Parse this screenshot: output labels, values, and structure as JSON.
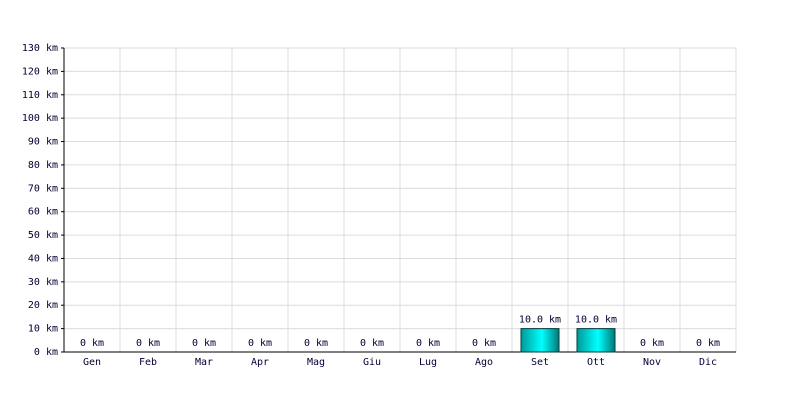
{
  "chart_data": {
    "type": "bar",
    "categories": [
      "Gen",
      "Feb",
      "Mar",
      "Apr",
      "Mag",
      "Giu",
      "Lug",
      "Ago",
      "Set",
      "Ott",
      "Nov",
      "Dic"
    ],
    "values": [
      0,
      0,
      0,
      0,
      0,
      0,
      0,
      0,
      10,
      10,
      0,
      0
    ],
    "value_labels": [
      "0 km",
      "0 km",
      "0 km",
      "0 km",
      "0 km",
      "0 km",
      "0 km",
      "0 km",
      "10.0 km",
      "10.0 km",
      "0 km",
      "0 km"
    ],
    "color": "#00e0e0",
    "ylim": [
      0,
      130
    ],
    "yticks": [
      {
        "value": 0,
        "label": "0 km"
      },
      {
        "value": 10,
        "label": "10 km"
      },
      {
        "value": 20,
        "label": "20 km"
      },
      {
        "value": 30,
        "label": "30 km"
      },
      {
        "value": 40,
        "label": "40 km"
      },
      {
        "value": 50,
        "label": "50 km"
      },
      {
        "value": 60,
        "label": "60 km"
      },
      {
        "value": 70,
        "label": "70 km"
      },
      {
        "value": 80,
        "label": "80 km"
      },
      {
        "value": 90,
        "label": "90 km"
      },
      {
        "value": 100,
        "label": "100 km"
      },
      {
        "value": 110,
        "label": "110 km"
      },
      {
        "value": 120,
        "label": "120 km"
      },
      {
        "value": 130,
        "label": "130 km"
      }
    ],
    "grid": true
  }
}
